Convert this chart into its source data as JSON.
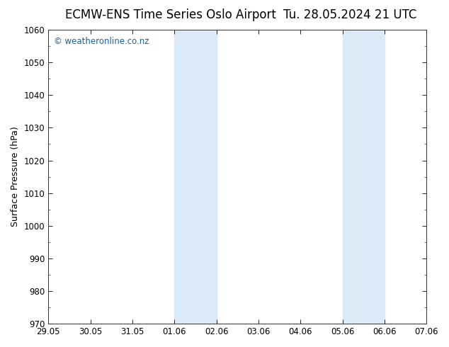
{
  "title_left": "ECMW-ENS Time Series Oslo Airport",
  "title_right": "Tu. 28.05.2024 21 UTC",
  "ylabel": "Surface Pressure (hPa)",
  "ylim": [
    970,
    1060
  ],
  "yticks": [
    970,
    980,
    990,
    1000,
    1010,
    1020,
    1030,
    1040,
    1050,
    1060
  ],
  "xtick_labels": [
    "29.05",
    "30.05",
    "31.05",
    "01.06",
    "02.06",
    "03.06",
    "04.06",
    "05.06",
    "06.06",
    "07.06"
  ],
  "xtick_positions": [
    0,
    1,
    2,
    3,
    4,
    5,
    6,
    7,
    8,
    9
  ],
  "xlim": [
    0,
    9
  ],
  "shaded_regions": [
    {
      "xmin": 3,
      "xmax": 4
    },
    {
      "xmin": 7,
      "xmax": 8
    }
  ],
  "shaded_color": "#daeaf7",
  "background_color": "#ffffff",
  "plot_bg_color": "#ffffff",
  "watermark_text": "© weatheronline.co.nz",
  "watermark_color": "#1464a0",
  "watermark_fontsize": 8.5,
  "title_fontsize": 12,
  "axis_label_fontsize": 9,
  "tick_fontsize": 8.5
}
